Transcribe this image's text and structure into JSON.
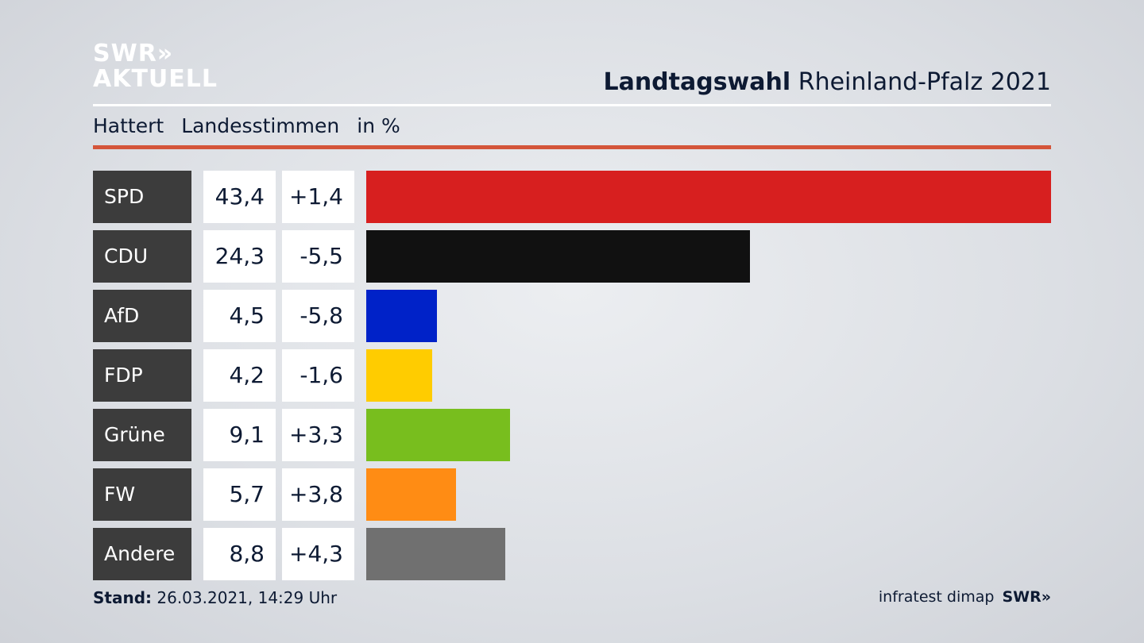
{
  "header": {
    "logo_line1": "SWR»",
    "logo_line2": "AKTUELL",
    "title_bold": "Landtagswahl",
    "title_rest": "Rheinland-Pfalz 2021"
  },
  "subtitle": {
    "place": "Hattert",
    "type": "Landesstimmen",
    "unit": "in %"
  },
  "chart_data": {
    "type": "bar",
    "title": "Landtagswahl Rheinland-Pfalz 2021 – Hattert Landesstimmen in %",
    "categories": [
      "SPD",
      "CDU",
      "AfD",
      "FDP",
      "Grüne",
      "FW",
      "Andere"
    ],
    "values": [
      43.4,
      24.3,
      4.5,
      4.2,
      9.1,
      5.7,
      8.8
    ],
    "values_label": [
      "43,4",
      "24,3",
      "4,5",
      "4,2",
      "9,1",
      "5,7",
      "8,8"
    ],
    "diff_label": [
      "+1,4",
      "-5,5",
      "-5,8",
      "-1,6",
      "+3,3",
      "+3,8",
      "+4,3"
    ],
    "colors": [
      "#d71f1f",
      "#111111",
      "#0022c8",
      "#ffcc00",
      "#78be1e",
      "#ff8c14",
      "#707070"
    ],
    "xlim": [
      0,
      43.4
    ]
  },
  "footer": {
    "stand_label": "Stand:",
    "stand_value": "26.03.2021, 14:29 Uhr",
    "source": "infratest dimap",
    "brand": "SWR»"
  }
}
